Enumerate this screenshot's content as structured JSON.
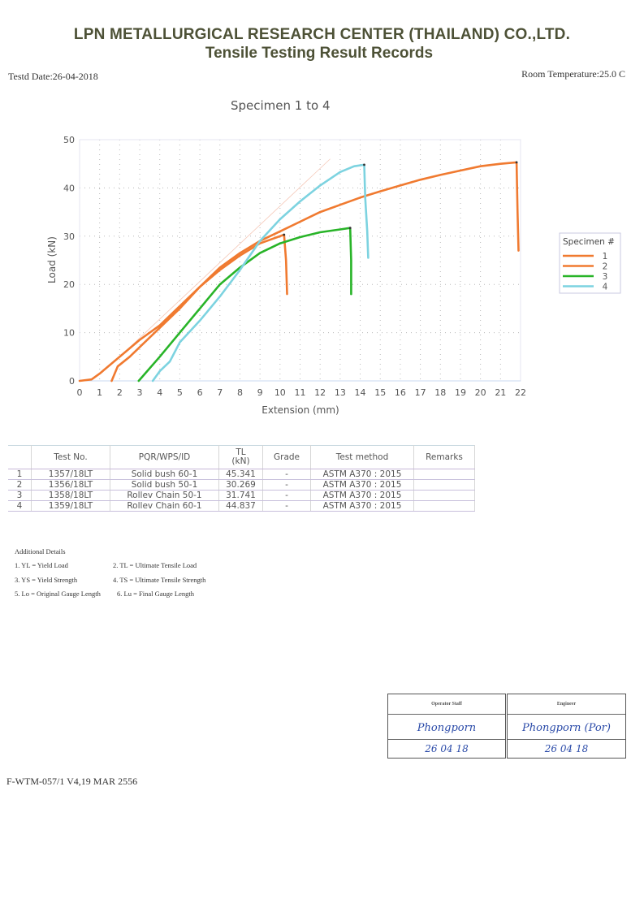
{
  "header": {
    "company": "LPN METALLURGICAL RESEARCH CENTER (THAILAND) CO.,LTD.",
    "title": "Tensile Testing Result Records",
    "test_date": "Testd Date:26-04-2018",
    "room_temperature": "Room Temperature:25.0 C"
  },
  "chart_data": {
    "type": "line",
    "title": "Specimen 1 to 4",
    "xlabel": "Extension (mm)",
    "ylabel": "Load (kN)",
    "xlim": [
      0,
      22
    ],
    "ylim": [
      0,
      50
    ],
    "x_ticks": [
      "0",
      "1",
      "2",
      "3",
      "4",
      "5",
      "6",
      "7",
      "8",
      "9",
      "10",
      "11",
      "12",
      "13",
      "14",
      "15",
      "16",
      "17",
      "18",
      "19",
      "20",
      "21",
      "22"
    ],
    "y_ticks": [
      "0",
      "10",
      "20",
      "30",
      "40",
      "50"
    ],
    "grid": true,
    "legend": {
      "title": "Specimen #",
      "position": "right",
      "entries": [
        "1",
        "2",
        "3",
        "4"
      ]
    },
    "series": [
      {
        "name": "1",
        "color": "#f07a30",
        "points": [
          [
            0,
            0
          ],
          [
            0.6,
            0.3
          ],
          [
            1,
            1.5
          ],
          [
            2,
            5
          ],
          [
            3,
            8.5
          ],
          [
            4,
            11.5
          ],
          [
            5,
            15.5
          ],
          [
            6,
            19.5
          ],
          [
            7,
            23.5
          ],
          [
            8,
            26.5
          ],
          [
            9,
            29
          ],
          [
            10,
            31
          ],
          [
            11,
            33
          ],
          [
            12,
            35
          ],
          [
            13,
            36.5
          ],
          [
            14,
            38
          ],
          [
            15,
            39.3
          ],
          [
            16,
            40.5
          ],
          [
            17,
            41.7
          ],
          [
            18,
            42.7
          ],
          [
            19,
            43.6
          ],
          [
            20,
            44.5
          ],
          [
            21,
            45
          ],
          [
            21.8,
            45.3
          ],
          [
            21.85,
            35
          ],
          [
            21.9,
            27
          ]
        ]
      },
      {
        "name": "2",
        "color": "#f07a30",
        "points": [
          [
            1.6,
            0
          ],
          [
            1.9,
            3
          ],
          [
            2.5,
            5
          ],
          [
            3,
            7
          ],
          [
            4,
            11
          ],
          [
            5,
            15
          ],
          [
            6,
            19.5
          ],
          [
            7,
            23
          ],
          [
            8,
            26
          ],
          [
            9,
            28.5
          ],
          [
            10.2,
            30.3
          ],
          [
            10.3,
            25
          ],
          [
            10.35,
            18
          ]
        ]
      },
      {
        "name": "3",
        "color": "#28b428",
        "points": [
          [
            2.95,
            0
          ],
          [
            4,
            5
          ],
          [
            5,
            10
          ],
          [
            6,
            15
          ],
          [
            7,
            20
          ],
          [
            8,
            23.5
          ],
          [
            9,
            26.5
          ],
          [
            10,
            28.5
          ],
          [
            11,
            29.8
          ],
          [
            12,
            30.8
          ],
          [
            13,
            31.4
          ],
          [
            13.5,
            31.7
          ],
          [
            13.55,
            25
          ],
          [
            13.55,
            18
          ]
        ]
      },
      {
        "name": "4",
        "color": "#7dd3e0",
        "points": [
          [
            3.65,
            0
          ],
          [
            4,
            2
          ],
          [
            4.5,
            4
          ],
          [
            5,
            8
          ],
          [
            6,
            12.5
          ],
          [
            7,
            17.5
          ],
          [
            8,
            23
          ],
          [
            9,
            29
          ],
          [
            10,
            33.5
          ],
          [
            11,
            37.2
          ],
          [
            12,
            40.5
          ],
          [
            13,
            43.3
          ],
          [
            13.7,
            44.5
          ],
          [
            14.2,
            44.8
          ],
          [
            14.25,
            38
          ],
          [
            14.35,
            31
          ],
          [
            14.4,
            25.5
          ]
        ]
      }
    ]
  },
  "table": {
    "headers": [
      "",
      "Test No.",
      "PQR/WPS/ID",
      "TL\n(kN)",
      "Grade",
      "Test method",
      "Remarks"
    ],
    "header_tl_line1": "TL",
    "header_tl_line2": "(kN)",
    "rows": [
      {
        "n": "1",
        "test_no": "1357/18LT",
        "id": "Solid bush 60-1",
        "tl": "45.341",
        "grade": "-",
        "method": "ASTM A370 : 2015",
        "remarks": ""
      },
      {
        "n": "2",
        "test_no": "1356/18LT",
        "id": "Solid bush 50-1",
        "tl": "30.269",
        "grade": "-",
        "method": "ASTM A370 : 2015",
        "remarks": ""
      },
      {
        "n": "3",
        "test_no": "1358/18LT",
        "id": "Rollev Chain 50-1",
        "tl": "31.741",
        "grade": "-",
        "method": "ASTM A370 : 2015",
        "remarks": ""
      },
      {
        "n": "4",
        "test_no": "1359/18LT",
        "id": "Rollev Chain 60-1",
        "tl": "44.837",
        "grade": "-",
        "method": "ASTM A370 : 2015",
        "remarks": ""
      }
    ]
  },
  "additional": {
    "title": "Additional Details",
    "items": [
      "1. YL = Yield Load",
      "2. TL = Ultimate Tensile Load",
      "3. YS = Yield Strength",
      "4. TS =  Ultimate Tensile Strength",
      "5. Lo = Original Gauge Length",
      "6. Lu = Final Gauge Length"
    ]
  },
  "signatures": {
    "operator": {
      "label": "Operator Staff",
      "name": "Phongporn",
      "date": "26 04 18"
    },
    "engineer": {
      "label": "Engineer",
      "name": "Phongporn (Por)",
      "date": "26 04 18"
    }
  },
  "footer": {
    "form_code": "F-WTM-057/1 V4,19 MAR 2556"
  }
}
